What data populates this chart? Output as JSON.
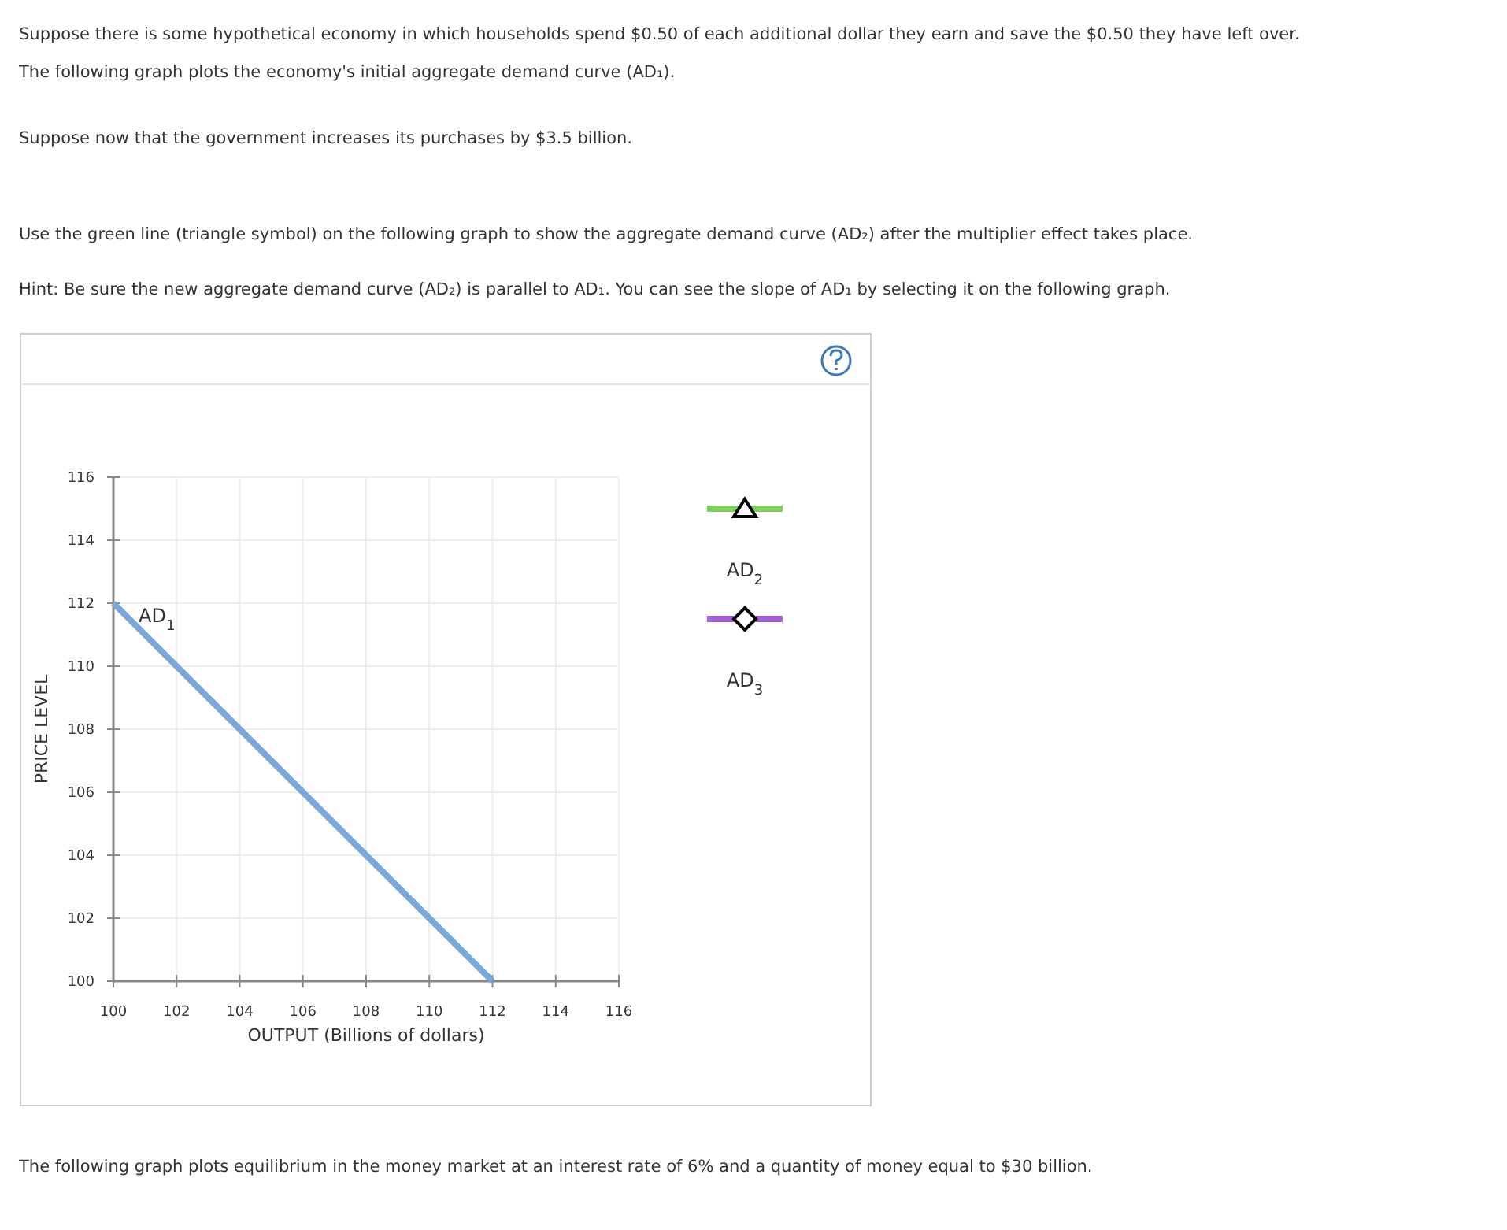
{
  "chart_data": {
    "type": "line",
    "xlabel": "OUTPUT (Billions of dollars)",
    "ylabel": "PRICE LEVEL",
    "xlim": [
      100,
      116
    ],
    "xticks": [
      100,
      102,
      104,
      106,
      108,
      110,
      112,
      114,
      116
    ],
    "ylim": [
      100,
      116
    ],
    "yticks": [
      100,
      102,
      104,
      106,
      108,
      110,
      112,
      114,
      116
    ],
    "grid": true,
    "line_style": "solid",
    "series": [
      {
        "name": "AD$_{1}$",
        "color": "#7ba7d9",
        "x": [
          100,
          112
        ],
        "values": [
          112,
          100
        ],
        "marker": "none"
      }
    ],
    "annotations": [
      "Suppose there is some hypothetical economy in which households spend $0.50 of each additional dollar they earn and save the $0.50 they have left over. The following graph plots the economy's initial aggregate demand curve (AD₁).",
      "Suppose now that the government increases its purchases by $3.5 billion.",
      "Use the green line (triangle symbol) on the following graph to show the aggregate demand curve (AD₂) after the multiplier effect takes place.",
      "Hint: Be sure the new aggregate demand curve (AD₂) is parallel to AD₁. You can see the slope of AD₁ by selecting it on the following graph.",
      "The following graph plots equilibrium in the money market at an interest rate of 6% and a quantity of money equal to $30 billion.",
      "AD$_{2}$",
      "AD$_{3}$"
    ]
  }
}
